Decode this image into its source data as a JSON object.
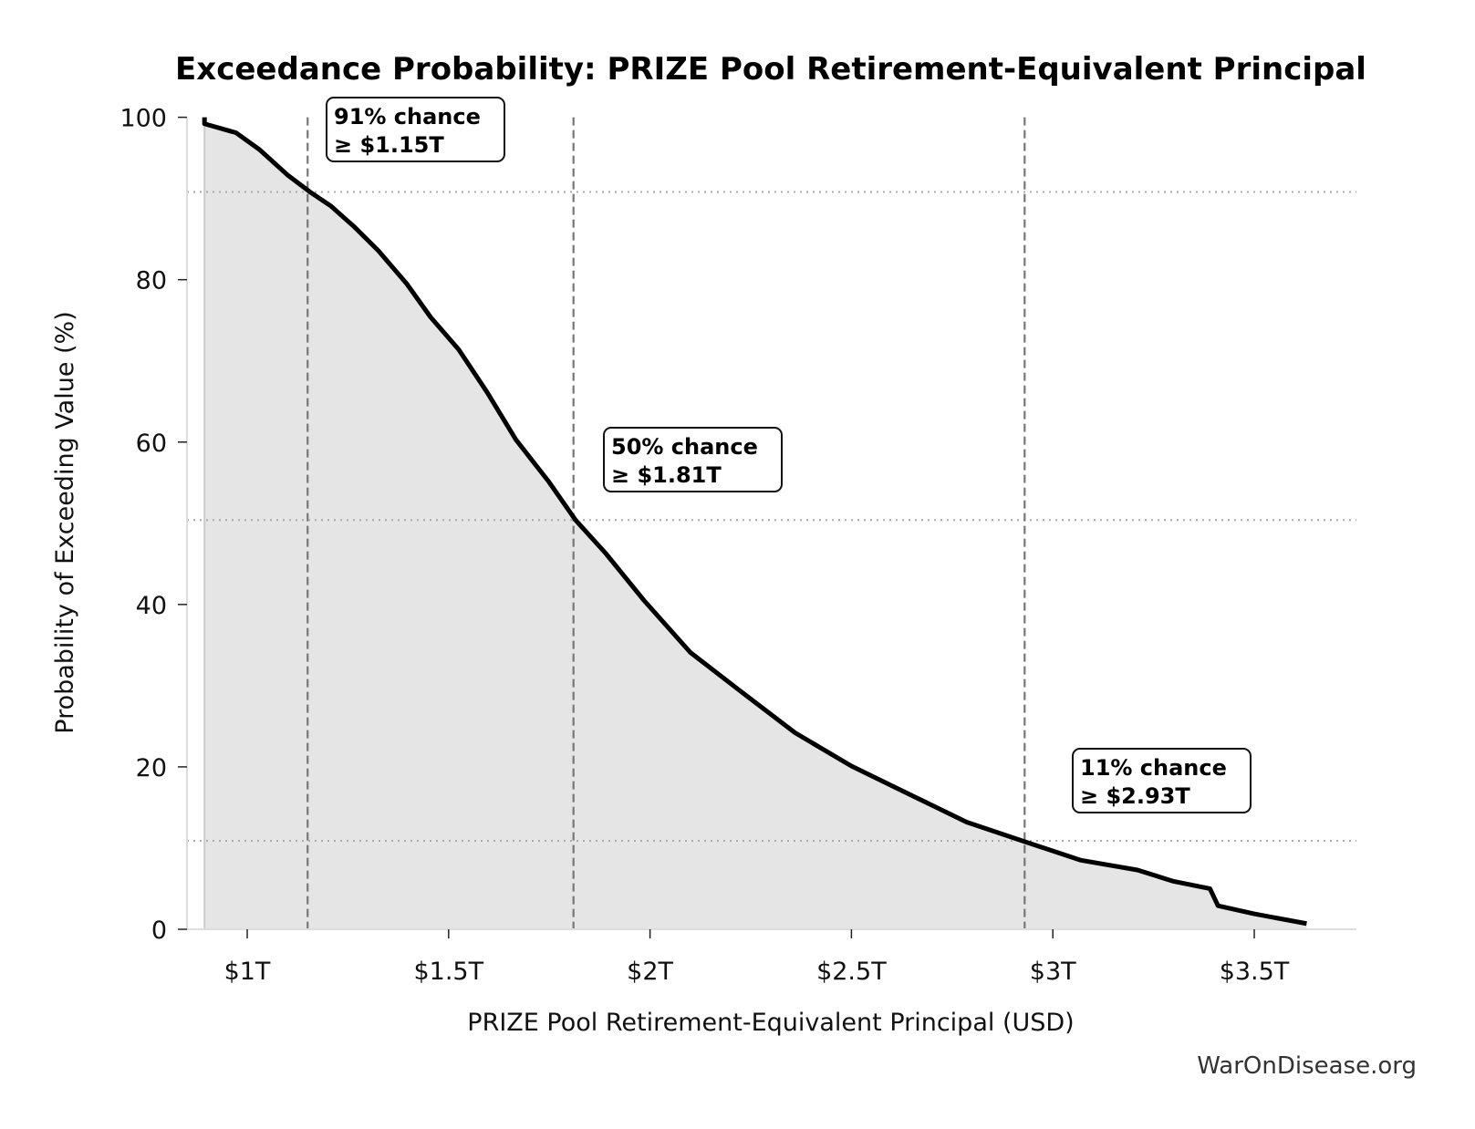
{
  "chart_data": {
    "type": "area",
    "title": "Exceedance Probability: PRIZE Pool Retirement-Equivalent Principal",
    "xlabel": "PRIZE Pool Retirement-Equivalent Principal (USD)",
    "ylabel": "Probability of Exceeding Value (%)",
    "xlim": [
      0.85,
      3.9
    ],
    "ylim": [
      0,
      100
    ],
    "x_unit": "trillions USD",
    "x_ticks": [
      1,
      1.5,
      2,
      2.5,
      3,
      3.5
    ],
    "x_tick_labels": [
      "$1T",
      "$1.5T",
      "$2T",
      "$2.5T",
      "$3T",
      "$3.5T"
    ],
    "y_ticks": [
      0,
      20,
      40,
      60,
      80,
      100
    ],
    "y_tick_labels": [
      "0",
      "20",
      "40",
      "60",
      "80",
      "100"
    ],
    "grid": false,
    "series": [
      {
        "name": "Exceedance probability",
        "color": "#000000",
        "fill": "#e5e5e5",
        "x": [
          0.894,
          0.894,
          0.972,
          1.031,
          1.1,
          1.156,
          1.207,
          1.266,
          1.325,
          1.396,
          1.455,
          1.525,
          1.596,
          1.667,
          1.749,
          1.815,
          1.89,
          1.985,
          2.1,
          2.22,
          2.36,
          2.5,
          2.645,
          2.786,
          2.93,
          3.07,
          3.21,
          3.3,
          3.39,
          3.41,
          3.5,
          3.63
        ],
        "y": [
          100,
          99.2,
          98.1,
          96.0,
          92.9,
          90.8,
          89.1,
          86.5,
          83.6,
          79.5,
          75.4,
          71.4,
          66.1,
          60.3,
          55.1,
          50.4,
          46.3,
          40.5,
          34.1,
          29.5,
          24.2,
          20.1,
          16.6,
          13.2,
          10.8,
          8.5,
          7.3,
          5.9,
          5.0,
          2.9,
          1.9,
          0.7
        ]
      }
    ],
    "reference_lines": [
      {
        "x": 1.15,
        "y": 90.8
      },
      {
        "x": 1.81,
        "y": 50.4
      },
      {
        "x": 2.93,
        "y": 10.9
      }
    ],
    "annotations": [
      {
        "line1": "91% chance",
        "line2": "≥ $1.15T"
      },
      {
        "line1": "50% chance",
        "line2": "≥ $1.81T"
      },
      {
        "line1": "11% chance",
        "line2": "≥ $2.93T"
      }
    ],
    "watermark": "WarOnDisease.org"
  }
}
